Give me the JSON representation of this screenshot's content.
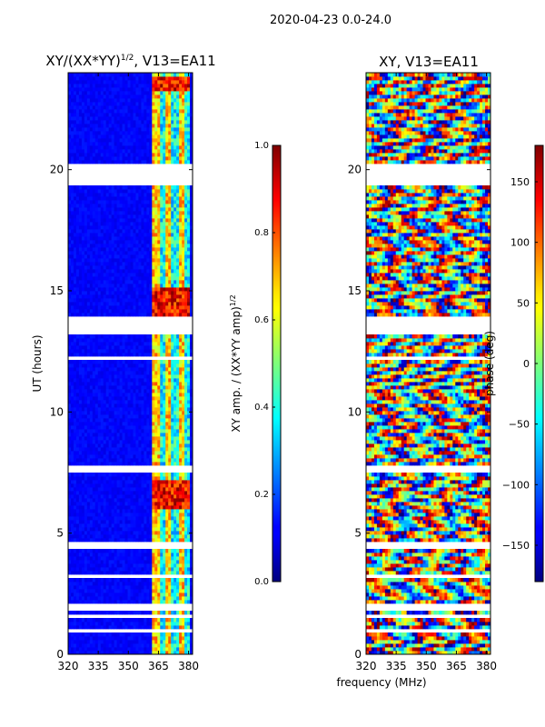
{
  "figure": {
    "suptitle": "2020-04-23 0.0-24.0",
    "xlabel": "frequency (MHz)"
  },
  "chart_data": [
    {
      "type": "heatmap",
      "title": "XY/(XX*YY)^{1/2}, V13=EA11",
      "title_main": "XY/(XX*YY)",
      "title_exp": "1/2",
      "title_suffix": ", V13=EA11",
      "xlabel": "frequency (MHz)",
      "ylabel": "UT (hours)",
      "xlim": [
        320,
        382
      ],
      "ylim": [
        0,
        24
      ],
      "xticks": [
        320,
        335,
        350,
        365,
        380
      ],
      "yticks": [
        0,
        5,
        10,
        15,
        20
      ],
      "colorbar": {
        "label_main": "XY amp. / (XX*YY amp)",
        "label_exp": "1/2",
        "range": [
          0.0,
          1.0
        ],
        "ticks": [
          "0.0",
          "0.2",
          "0.4",
          "0.6",
          "0.8",
          "1.0"
        ],
        "colormap": "jet"
      },
      "gap_hours": [
        [
          0.85,
          1.0
        ],
        [
          1.15,
          1.25
        ],
        [
          1.55,
          1.65
        ],
        [
          1.85,
          2.05
        ],
        [
          3.15,
          3.35
        ],
        [
          4.35,
          4.6
        ],
        [
          7.55,
          7.75
        ],
        [
          12.2,
          12.35
        ],
        [
          13.2,
          13.95
        ],
        [
          19.3,
          19.9
        ],
        [
          20.0,
          20.2
        ]
      ],
      "hot_bands_hours": [
        [
          6.0,
          7.2
        ],
        [
          14.0,
          15.2
        ],
        [
          23.2,
          23.9
        ]
      ],
      "active_freq_mhz": [
        362,
        381
      ]
    },
    {
      "type": "heatmap",
      "title": "XY, V13=EA11",
      "xlabel": "frequency (MHz)",
      "ylabel": "",
      "xlim": [
        320,
        382
      ],
      "ylim": [
        0,
        24
      ],
      "xticks": [
        320,
        335,
        350,
        365,
        380
      ],
      "yticks": [
        0,
        5,
        10,
        15,
        20
      ],
      "colorbar": {
        "label": "phase (deg)",
        "range": [
          -180,
          180
        ],
        "ticks": [
          "150",
          "100",
          "50",
          "0",
          "−50",
          "−100",
          "−150"
        ],
        "tick_values": [
          150,
          100,
          50,
          0,
          -50,
          -100,
          -150
        ],
        "colormap": "jet"
      },
      "gap_hours": [
        [
          0.85,
          1.0
        ],
        [
          1.15,
          1.25
        ],
        [
          1.55,
          1.65
        ],
        [
          1.85,
          2.05
        ],
        [
          3.15,
          3.35
        ],
        [
          4.35,
          4.6
        ],
        [
          7.55,
          7.75
        ],
        [
          12.2,
          12.35
        ],
        [
          13.2,
          13.95
        ],
        [
          19.3,
          19.9
        ],
        [
          20.0,
          20.2
        ]
      ]
    }
  ]
}
